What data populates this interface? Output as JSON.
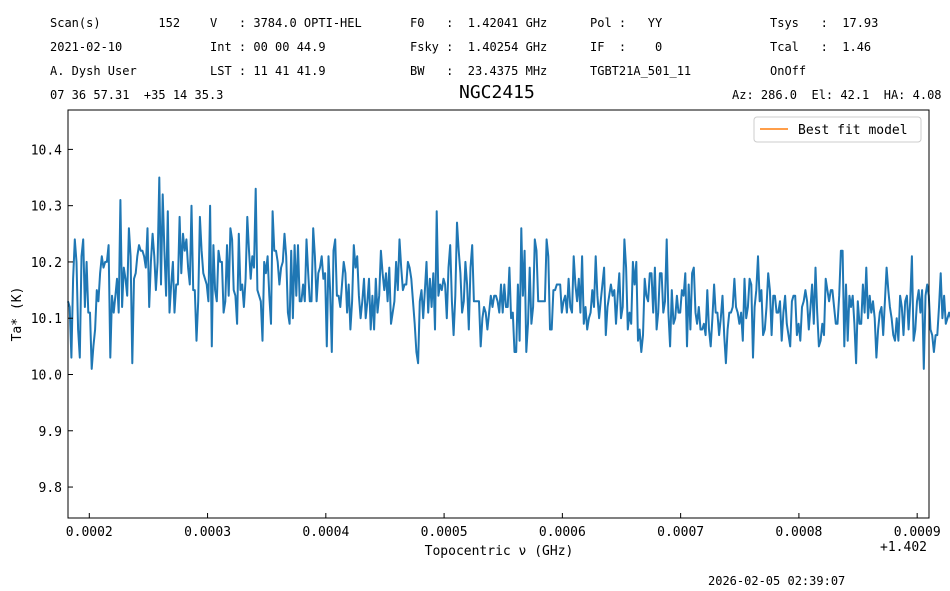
{
  "header": {
    "rows": [
      [
        "Scan(s)        152",
        "V   : 3784.0 OPTI-HEL",
        "F0   :  1.42041 GHz",
        "Pol :   YY",
        "Tsys   :  17.93"
      ],
      [
        "2021-02-10",
        "Int : 00 00 44.9",
        "Fsky :  1.40254 GHz",
        "IF  :    0",
        "Tcal   :  1.46"
      ],
      [
        "A. Dysh User",
        "LST : 11 41 41.9",
        "BW   :  23.4375 MHz",
        "TGBT21A_501_11",
        "OnOff"
      ]
    ],
    "coords": "07 36 57.31  +35 14 35.3",
    "azel": "Az: 286.0  El: 42.1  HA: 4.08"
  },
  "timestamp": "2026-02-05 02:39:07",
  "chart_data": {
    "type": "line",
    "title": "NGC2415",
    "xlabel": "Topocentric ν (GHz)",
    "ylabel": "Ta* (K)",
    "x_offset_label": "+1.402",
    "xlim": [
      0.000182,
      0.00091
    ],
    "ylim": [
      9.745,
      10.47
    ],
    "xticks": [
      0.0002,
      0.0003,
      0.0004,
      0.0005,
      0.0006,
      0.0007,
      0.0008,
      0.0009
    ],
    "xtick_labels": [
      "0.0002",
      "0.0003",
      "0.0004",
      "0.0005",
      "0.0006",
      "0.0007",
      "0.0008",
      "0.0009"
    ],
    "yticks": [
      9.8,
      9.9,
      10.0,
      10.1,
      10.2,
      10.3,
      10.4
    ],
    "ytick_labels": [
      "9.8",
      "9.9",
      "10.0",
      "10.1",
      "10.2",
      "10.3",
      "10.4"
    ],
    "legend": {
      "placement": "top-right",
      "entries": [
        {
          "label": "Best fit model",
          "color": "#ff7f0e"
        }
      ]
    },
    "grid": false,
    "series": [
      {
        "color": "#1f77b4",
        "x_start": 0.000182,
        "x_step": 1.43e-06,
        "values": [
          10.13,
          10.12,
          10.03,
          10.17,
          10.24,
          10.2,
          10.08,
          10.03,
          10.21,
          10.24,
          10.12,
          10.2,
          10.11,
          10.11,
          10.01,
          10.05,
          10.08,
          10.15,
          10.13,
          10.18,
          10.21,
          10.19,
          10.2,
          10.2,
          10.23,
          10.03,
          10.14,
          10.11,
          10.14,
          10.17,
          10.11,
          10.31,
          10.12,
          10.19,
          10.17,
          10.14,
          10.26,
          10.21,
          10.02,
          10.17,
          10.18,
          10.21,
          10.23,
          10.22,
          10.22,
          10.21,
          10.19,
          10.26,
          10.12,
          10.2,
          10.25,
          10.21,
          10.15,
          10.2,
          10.35,
          10.16,
          10.32,
          10.22,
          10.14,
          10.29,
          10.11,
          10.16,
          10.2,
          10.11,
          10.16,
          10.16,
          10.28,
          10.18,
          10.25,
          10.22,
          10.24,
          10.19,
          10.16,
          10.3,
          10.15,
          10.15,
          10.06,
          10.13,
          10.28,
          10.22,
          10.18,
          10.17,
          10.16,
          10.13,
          10.3,
          10.05,
          10.23,
          10.15,
          10.13,
          10.22,
          10.2,
          10.2,
          10.11,
          10.13,
          10.23,
          10.14,
          10.26,
          10.24,
          10.15,
          10.14,
          10.09,
          10.25,
          10.15,
          10.16,
          10.12,
          10.17,
          10.28,
          10.22,
          10.17,
          10.21,
          10.19,
          10.33,
          10.15,
          10.14,
          10.13,
          10.06,
          10.2,
          10.18,
          10.21,
          10.14,
          10.09,
          10.29,
          10.22,
          10.22,
          10.2,
          10.16,
          10.19,
          10.2,
          10.25,
          10.21,
          10.11,
          10.09,
          10.22,
          10.1,
          10.23,
          10.14,
          10.23,
          10.13,
          10.13,
          10.16,
          10.13,
          10.24,
          10.18,
          10.13,
          10.13,
          10.26,
          10.21,
          10.13,
          10.18,
          10.19,
          10.21,
          10.17,
          10.18,
          10.05,
          10.21,
          10.15,
          10.04,
          10.22,
          10.24,
          10.14,
          10.14,
          10.12,
          10.16,
          10.2,
          10.18,
          10.11,
          10.16,
          10.08,
          10.13,
          10.23,
          10.19,
          10.21,
          10.14,
          10.1,
          10.13,
          10.17,
          10.1,
          10.13,
          10.17,
          10.08,
          10.14,
          10.08,
          10.17,
          10.11,
          10.14,
          10.22,
          10.18,
          10.15,
          10.18,
          10.13,
          10.19,
          10.09,
          10.11,
          10.13,
          10.2,
          10.15,
          10.24,
          10.19,
          10.15,
          10.16,
          10.16,
          10.2,
          10.19,
          10.17,
          10.13,
          10.09,
          10.04,
          10.02,
          10.13,
          10.15,
          10.1,
          10.15,
          10.2,
          10.11,
          10.17,
          10.12,
          10.18,
          10.08,
          10.29,
          10.14,
          10.16,
          10.15,
          10.17,
          10.16,
          10.1,
          10.19,
          10.23,
          10.13,
          10.07,
          10.14,
          10.27,
          10.22,
          10.18,
          10.11,
          10.13,
          10.2,
          10.16,
          10.08,
          10.19,
          10.23,
          10.13,
          10.13,
          10.13,
          10.13,
          10.05,
          10.1,
          10.12,
          10.11,
          10.08,
          10.11,
          10.14,
          10.12,
          10.14,
          10.14,
          10.13,
          10.11,
          10.16,
          10.11,
          10.16,
          10.12,
          10.12,
          10.19,
          10.1,
          10.11,
          10.04,
          10.04,
          10.16,
          10.06,
          10.26,
          10.14,
          10.22,
          10.04,
          10.09,
          10.19,
          10.09,
          10.12,
          10.24,
          10.22,
          10.13,
          10.13,
          10.13,
          10.13,
          10.13,
          10.24,
          10.21,
          10.08,
          10.08,
          10.15,
          10.15,
          10.16,
          10.16,
          10.16,
          10.11,
          10.13,
          10.14,
          10.11,
          10.17,
          10.12,
          10.11,
          10.21,
          10.16,
          10.13,
          10.17,
          10.11,
          10.21,
          10.09,
          10.12,
          10.08,
          10.1,
          10.11,
          10.15,
          10.12,
          10.21,
          10.14,
          10.1,
          10.13,
          10.16,
          10.19,
          10.07,
          10.12,
          10.14,
          10.16,
          10.14,
          10.15,
          10.09,
          10.14,
          10.18,
          10.1,
          10.12,
          10.24,
          10.19,
          10.08,
          10.11,
          10.09,
          10.2,
          10.16,
          10.2,
          10.06,
          10.08,
          10.04,
          10.07,
          10.17,
          10.14,
          10.13,
          10.18,
          10.18,
          10.11,
          10.19,
          10.08,
          10.11,
          10.18,
          10.18,
          10.11,
          10.13,
          10.24,
          10.11,
          10.05,
          10.15,
          10.09,
          10.1,
          10.14,
          10.11,
          10.11,
          10.15,
          10.14,
          10.18,
          10.05,
          10.16,
          10.08,
          10.18,
          10.19,
          10.11,
          10.09,
          10.12,
          10.08,
          10.08,
          10.09,
          10.07,
          10.15,
          10.08,
          10.05,
          10.1,
          10.16,
          10.11,
          10.11,
          10.07,
          10.1,
          10.14,
          10.07,
          10.02,
          10.08,
          10.11,
          10.11,
          10.12,
          10.17,
          10.12,
          10.11,
          10.09,
          10.11,
          10.06,
          10.17,
          10.1,
          10.12,
          10.17,
          10.16,
          10.03,
          10.12,
          10.15,
          10.21,
          10.13,
          10.15,
          10.07,
          10.08,
          10.12,
          10.18,
          10.15,
          10.07,
          10.14,
          10.14,
          10.11,
          10.11,
          10.13,
          10.06,
          10.11,
          10.14,
          10.09,
          10.07,
          10.05,
          10.13,
          10.14,
          10.14,
          10.07,
          10.09,
          10.06,
          10.12,
          10.13,
          10.15,
          10.13,
          10.08,
          10.12,
          10.16,
          10.09,
          10.19,
          10.11,
          10.05,
          10.06,
          10.09,
          10.07,
          10.17,
          10.15,
          10.13,
          10.15,
          10.15,
          10.12,
          10.09,
          10.09,
          10.14,
          10.22,
          10.22,
          10.05,
          10.16,
          10.06,
          10.14,
          10.12,
          10.14,
          10.09,
          10.02,
          10.13,
          10.09,
          10.09,
          10.16,
          10.11,
          10.19,
          10.1,
          10.14,
          10.11,
          10.13,
          10.1,
          10.03,
          10.08,
          10.11,
          10.12,
          10.07,
          10.13,
          10.19,
          10.15,
          10.12,
          10.1,
          10.07,
          10.06,
          10.1,
          10.06,
          10.14,
          10.12,
          10.07,
          10.13,
          10.14,
          10.08,
          10.13,
          10.21,
          10.06,
          10.08,
          10.13,
          10.15,
          10.11,
          10.15,
          10.01,
          10.14,
          10.16,
          10.14,
          10.08,
          10.07,
          10.04,
          10.07,
          10.07,
          10.12,
          10.18,
          10.1,
          10.14,
          10.09,
          10.1,
          10.11,
          10.1,
          10.16,
          10.1,
          10.1,
          10.1,
          10.12,
          10.1,
          10.14,
          10.15,
          10.11,
          10.04,
          10.18,
          10.11,
          10.13,
          10.11,
          10.12,
          10.14,
          10.09,
          10.18
        ]
      }
    ]
  }
}
